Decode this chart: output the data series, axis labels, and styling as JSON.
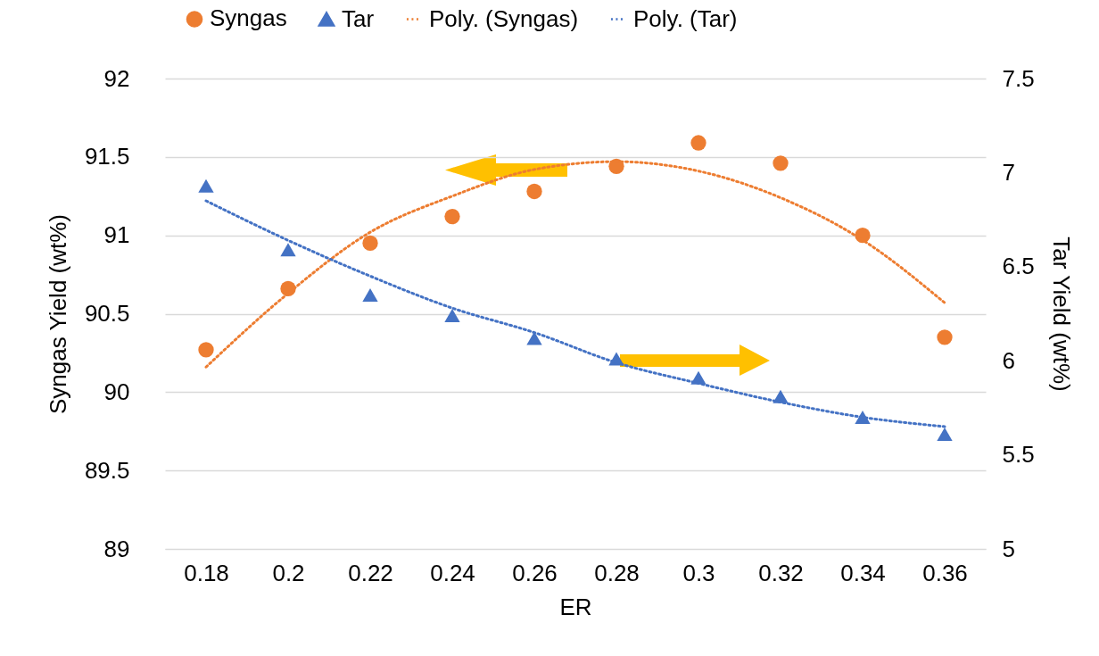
{
  "chart_data": {
    "type": "scatter",
    "xlabel": "ER",
    "ylabel": "Syngas Yield (wt%)",
    "y2label": "Tar Yield (wt%)",
    "categories": [
      "0.18",
      "0.2",
      "0.22",
      "0.24",
      "0.26",
      "0.28",
      "0.3",
      "0.32",
      "0.34",
      "0.36"
    ],
    "ylim": [
      89,
      92
    ],
    "yticks": [
      89,
      89.5,
      90,
      90.5,
      91,
      91.5,
      92
    ],
    "y2lim": [
      5,
      7.5
    ],
    "y2ticks": [
      5,
      5.5,
      6,
      6.5,
      7,
      7.5
    ],
    "grid": "y",
    "legend": "top",
    "series": [
      {
        "name": "Syngas",
        "type": "scatter",
        "marker": "circle",
        "color": "#ed7d31",
        "values": [
          90.27,
          90.66,
          90.95,
          91.12,
          91.28,
          91.44,
          91.59,
          91.46,
          91.0,
          90.35
        ]
      },
      {
        "name": "Tar",
        "type": "scatter",
        "marker": "triangle",
        "axis": "y2",
        "color": "#4472c4",
        "values": [
          6.93,
          6.59,
          6.35,
          6.24,
          6.12,
          6.01,
          5.91,
          5.81,
          5.7,
          5.61
        ]
      },
      {
        "name": "Poly. (Syngas)",
        "type": "line",
        "line_style": "dotted",
        "color": "#ed7d31",
        "values": [
          90.16,
          90.63,
          91.02,
          91.25,
          91.42,
          91.47,
          91.41,
          91.24,
          90.97,
          90.57
        ]
      },
      {
        "name": "Poly. (Tar)",
        "type": "line",
        "line_style": "dotted",
        "axis": "y2",
        "color": "#4472c4",
        "values": [
          6.85,
          6.64,
          6.45,
          6.28,
          6.15,
          5.99,
          5.88,
          5.78,
          5.7,
          5.65
        ]
      }
    ]
  }
}
